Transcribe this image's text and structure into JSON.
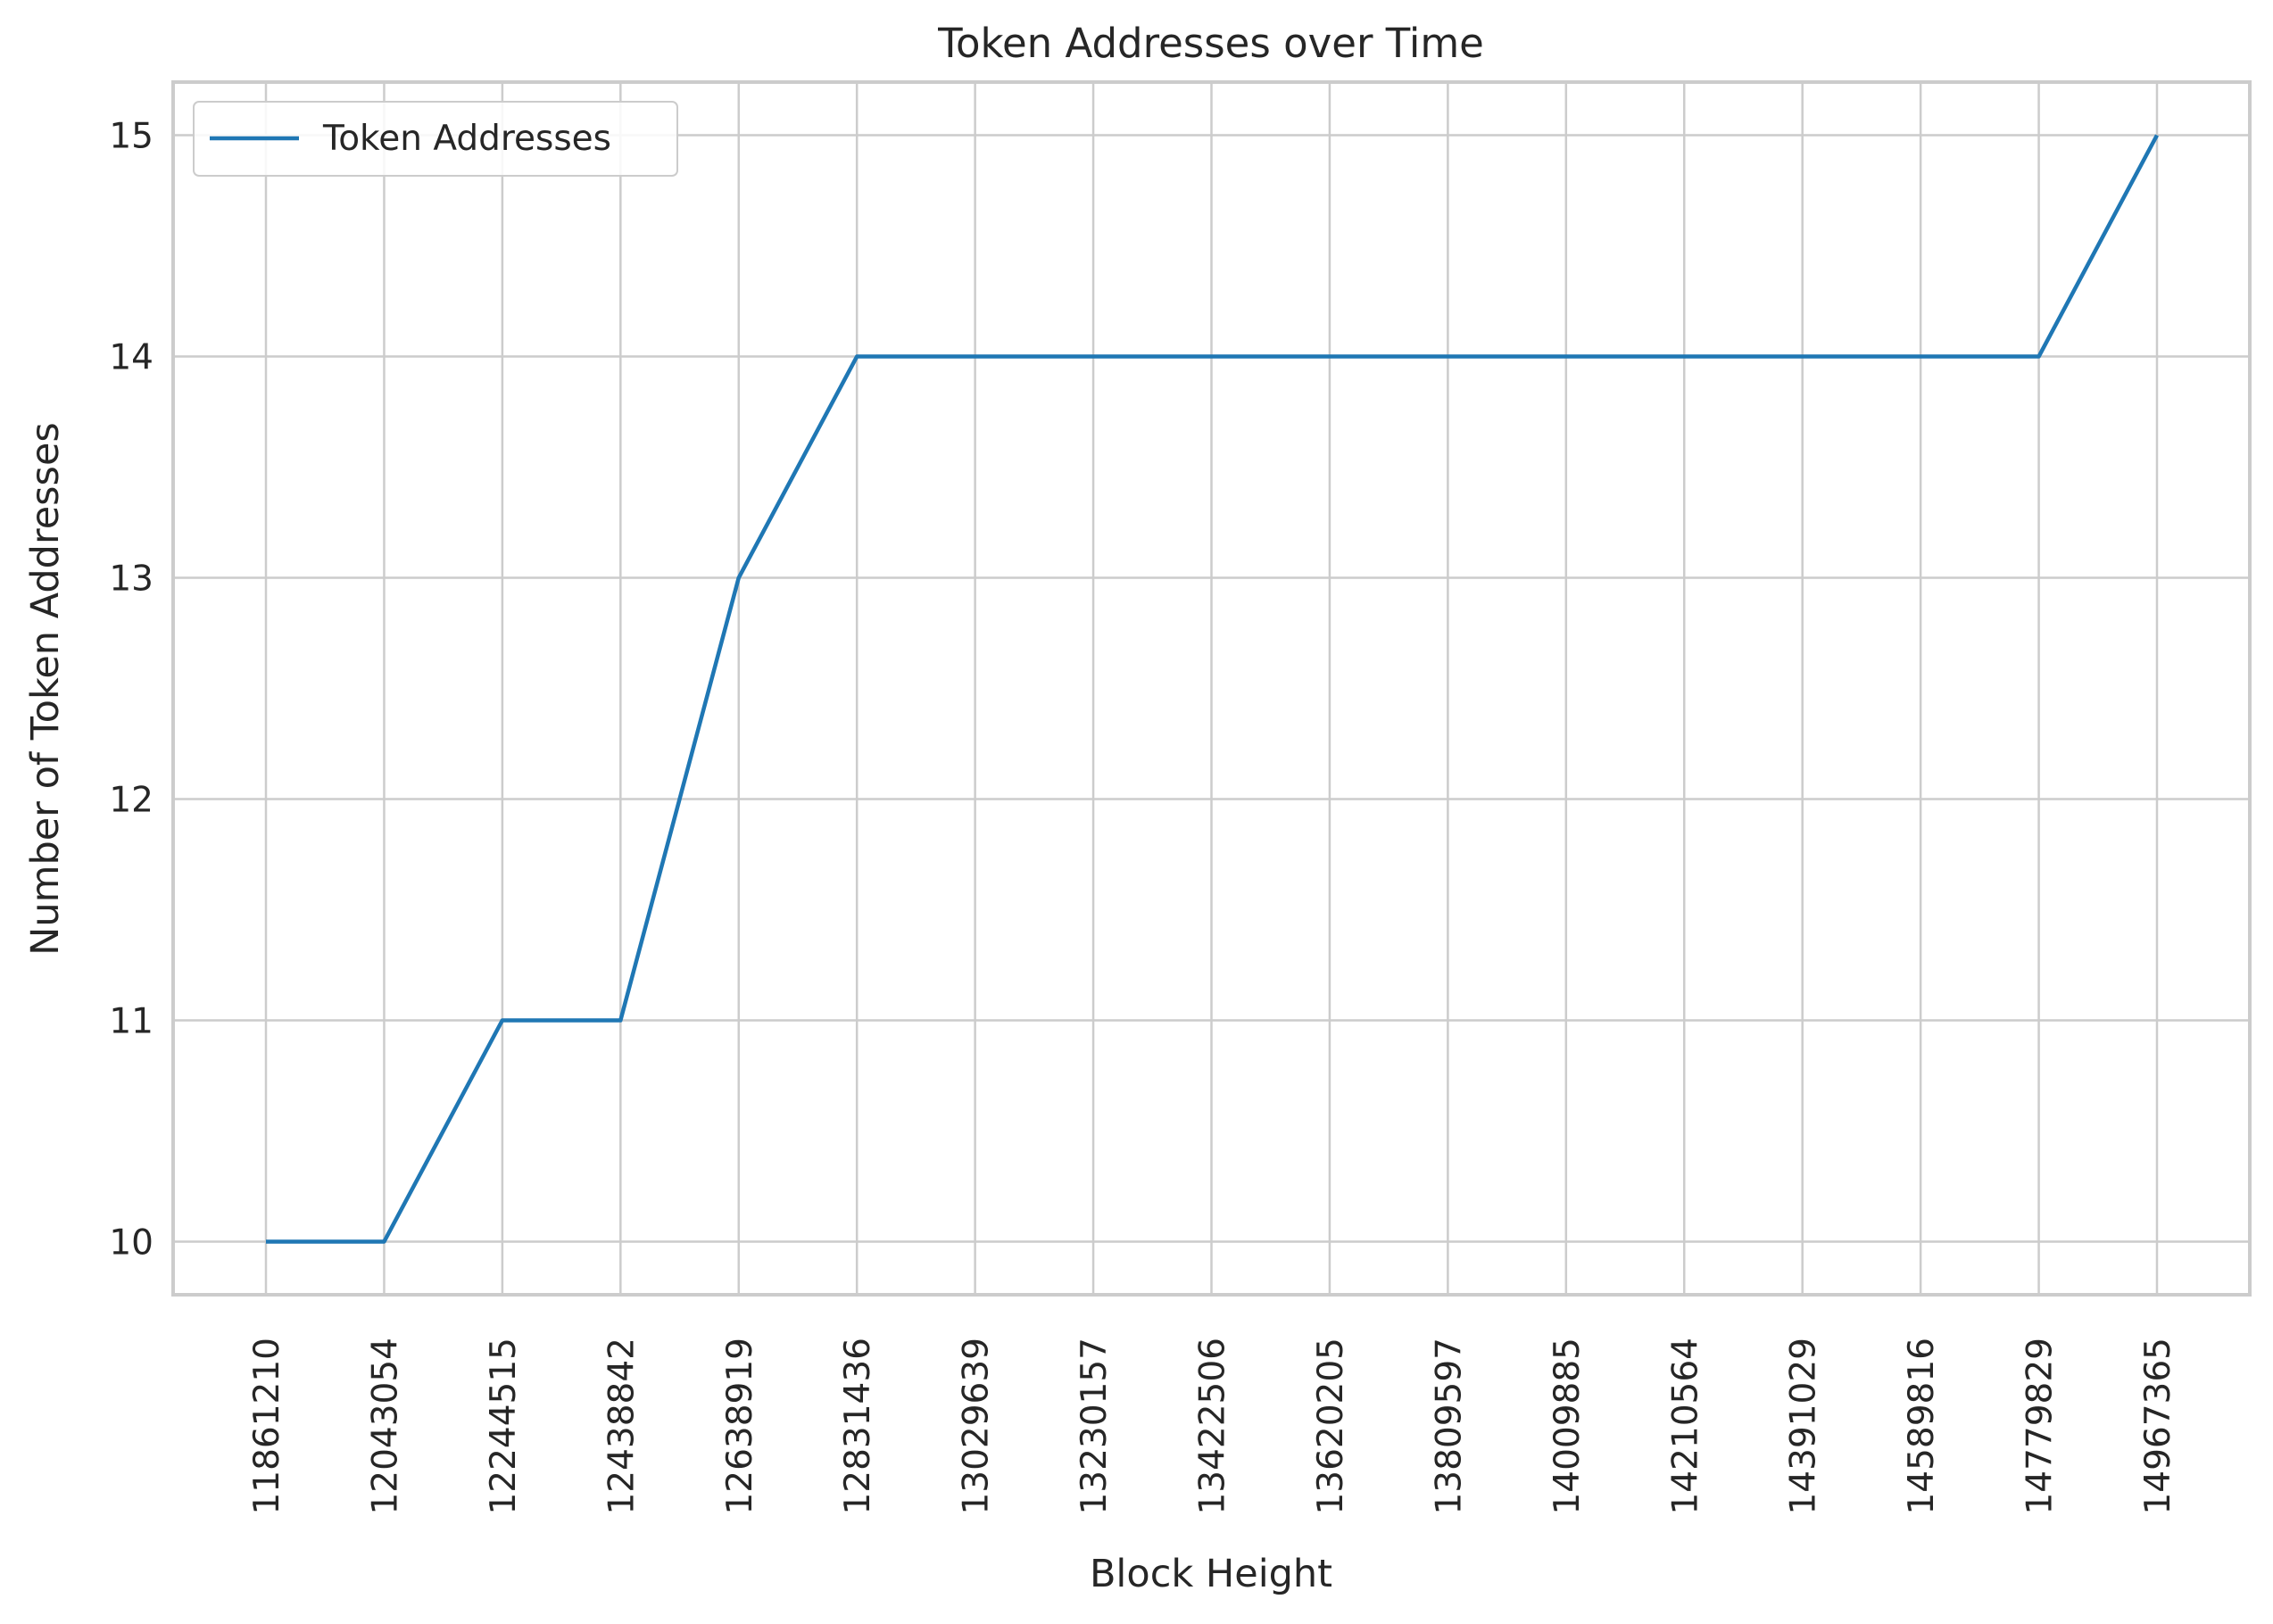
{
  "chart_data": {
    "type": "line",
    "title": "Token Addresses over Time",
    "xlabel": "Block Height",
    "ylabel": "Number of Token Addresses",
    "categories": [
      "11861210",
      "12043054",
      "12244515",
      "12438842",
      "12638919",
      "12831436",
      "13029639",
      "13230157",
      "13422506",
      "13620205",
      "13809597",
      "14009885",
      "14210564",
      "14391029",
      "14589816",
      "14779829",
      "14967365"
    ],
    "series": [
      {
        "name": "Token Addresses",
        "values": [
          10,
          10,
          11,
          11,
          13,
          14,
          14,
          14,
          14,
          14,
          14,
          14,
          14,
          14,
          14,
          14,
          15
        ]
      }
    ],
    "yticks": [
      10,
      11,
      12,
      13,
      14,
      15
    ],
    "ylim": [
      9.76,
      15.24
    ],
    "grid": true,
    "legend_position": "top-left",
    "colors": {
      "line": "#1f77b4",
      "grid": "#cccccc",
      "spine": "#cccccc",
      "text": "#262626"
    }
  }
}
